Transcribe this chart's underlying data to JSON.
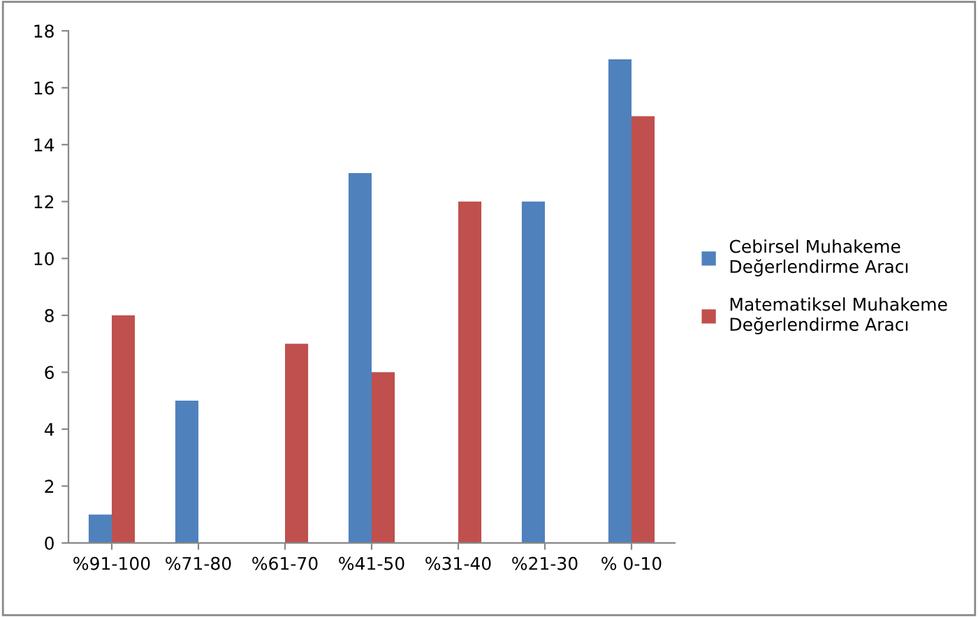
{
  "chart_data": {
    "type": "bar",
    "categories": [
      "%91-100",
      "%71-80",
      "%61-70",
      "%41-50",
      "%31-40",
      "%21-30",
      "% 0-10"
    ],
    "series": [
      {
        "name": "Cebirsel Muhakeme\nDeğerlendirme Aracı",
        "color": "#4f81bd",
        "values": [
          1,
          5,
          0,
          13,
          0,
          12,
          17
        ]
      },
      {
        "name": "Matematiksel Muhakeme\nDeğerlendirme Aracı",
        "color": "#c0504d",
        "values": [
          8,
          0,
          7,
          6,
          12,
          0,
          15
        ]
      }
    ],
    "ylim": [
      0,
      18
    ],
    "yticks": [
      0,
      2,
      4,
      6,
      8,
      10,
      12,
      14,
      16,
      18
    ],
    "grid": false,
    "legend": "right"
  }
}
